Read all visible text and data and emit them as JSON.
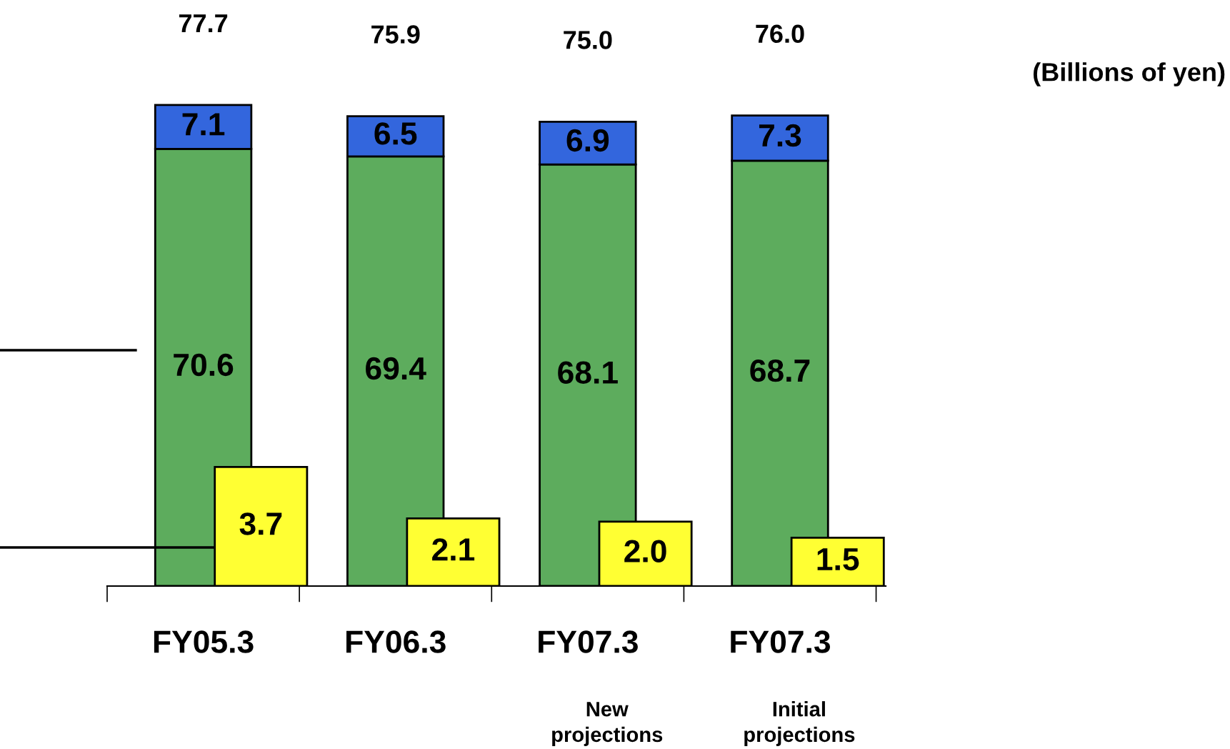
{
  "chart_data": {
    "type": "bar",
    "stacked": true,
    "data_labels": true,
    "categories": [
      "FY05.3",
      "FY06.3",
      "FY07.3",
      "FY07.3"
    ],
    "series": [
      {
        "color": "#5dac5d",
        "values": [
          70.6,
          69.4,
          68.1,
          68.7
        ]
      },
      {
        "color": "#3366dd",
        "values": [
          7.1,
          6.5,
          6.9,
          7.3
        ]
      },
      {
        "color": "#ffff33",
        "values": [
          3.7,
          2.1,
          2.0,
          1.5
        ],
        "value_labels": [
          "3.7",
          "2.1",
          "2.0",
          "1.5"
        ],
        "axis": "y2"
      }
    ],
    "totals": [
      "77.7",
      "75.9",
      "75.0",
      "76.0"
    ],
    "annotations": [
      "(Billions of yen)",
      "New\nprojections",
      "Initial\nprojections"
    ]
  }
}
